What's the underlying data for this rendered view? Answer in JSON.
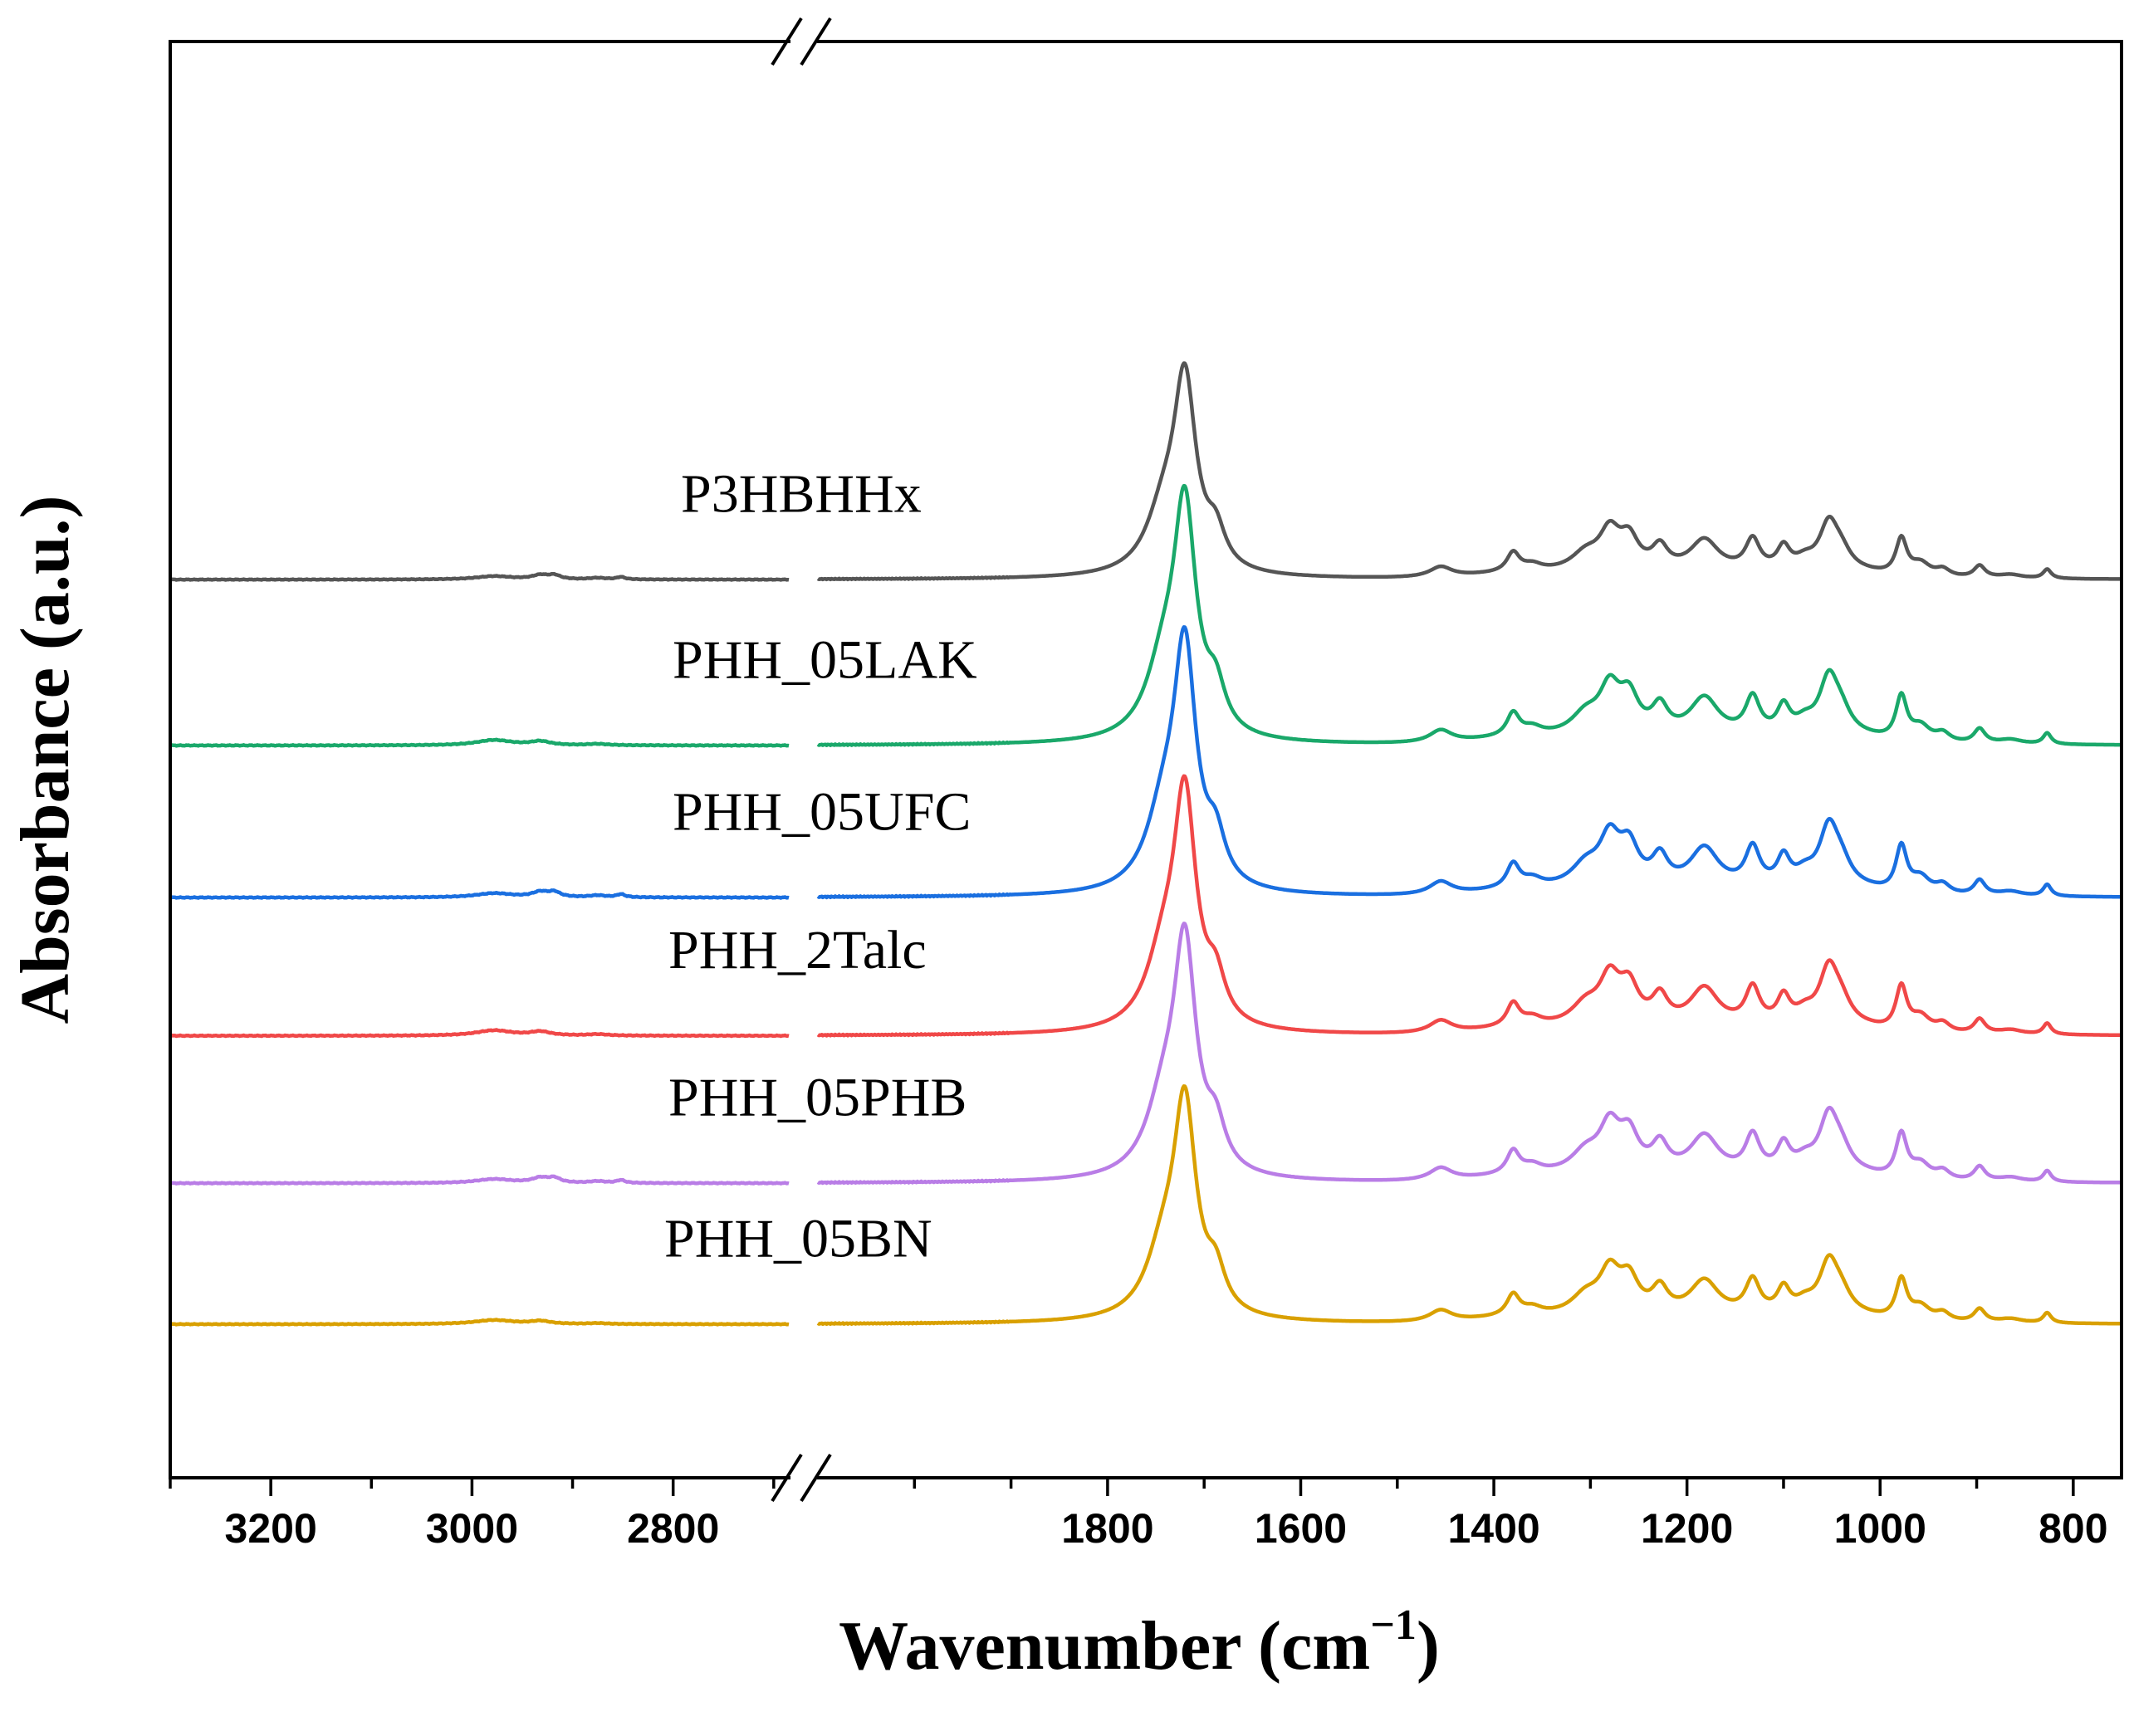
{
  "chart_data": {
    "type": "line",
    "title": "",
    "xlabel": "Wavenumber (cm",
    "xlabel_superscript": "−1",
    "xlabel_suffix": ")",
    "ylabel": "Absorbance (a.u.)",
    "x_axis": {
      "reversed": true,
      "broken": true,
      "segments": [
        [
          3300,
          2685
        ],
        [
          2100,
          750
        ]
      ],
      "ticks": [
        3200,
        3000,
        2800,
        1800,
        1600,
        1400,
        1200,
        1000,
        800
      ],
      "tick_labels": [
        "3200",
        "3000",
        "2800",
        "1800",
        "1600",
        "1400",
        "1200",
        "1000",
        "800"
      ]
    },
    "y_axis": {
      "ticks_shown": false,
      "range": [
        0,
        1
      ]
    },
    "grid": false,
    "series": [
      {
        "name": "P3HBHHx",
        "color": "#555555",
        "baseline": 0.808,
        "c1720": 0.2,
        "profile": "a"
      },
      {
        "name": "PHH_05LAK",
        "color": "#1aa86a",
        "baseline": 0.628,
        "c1720": 0.24,
        "profile": "b"
      },
      {
        "name": "PHH_05UFC",
        "color": "#1a6fe0",
        "baseline": 0.463,
        "c1720": 0.25,
        "profile": "a"
      },
      {
        "name": "PHH_2Talc",
        "color": "#f04848",
        "baseline": 0.313,
        "c1720": 0.24,
        "profile": "b"
      },
      {
        "name": "PHH_05PHB",
        "color": "#b97de6",
        "baseline": 0.153,
        "c1720": 0.24,
        "profile": "a"
      },
      {
        "name": "PHH_05BN",
        "color": "#d9a000",
        "baseline": 0.0,
        "c1720": 0.22,
        "profile": "c"
      }
    ],
    "peaks_cm-1": [
      2975,
      2930,
      2870,
      1725,
      1685,
      1455,
      1380,
      1280,
      1260,
      1230,
      1180,
      1130,
      1100,
      1050,
      975,
      940,
      895,
      825
    ]
  }
}
